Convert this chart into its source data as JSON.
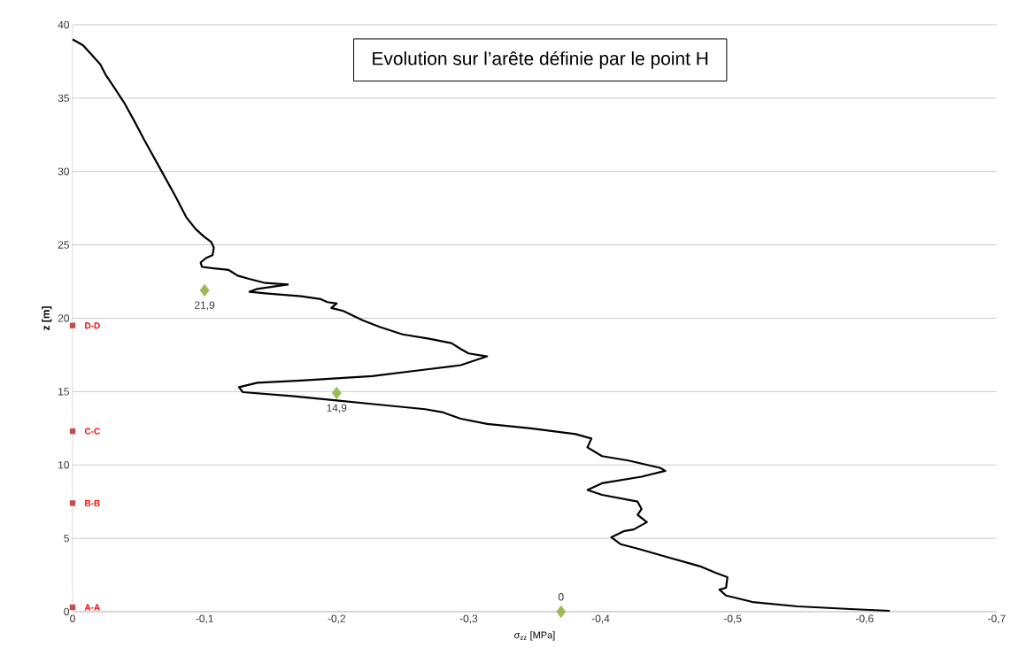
{
  "chart_data": {
    "type": "line",
    "title": "Evolution sur l’arête définie par le point H",
    "xlabel": "σ$_{zz}$ [MPa]",
    "ylabel": "z [m]",
    "xlim": [
      0,
      -0.7
    ],
    "ylim": [
      0,
      40
    ],
    "xticks": [
      0,
      {
        "value": -0.1,
        "label": "-0,1"
      },
      {
        "value": -0.2,
        "label": "-0,2"
      },
      {
        "value": -0.3,
        "label": "-0,3"
      },
      {
        "value": -0.4,
        "label": "-0,4"
      },
      {
        "value": -0.5,
        "label": "-0,5"
      },
      {
        "value": -0.6,
        "label": "-0,6"
      },
      {
        "value": -0.7,
        "label": "-0,7"
      }
    ],
    "yticks": [
      0,
      5,
      10,
      15,
      20,
      25,
      30,
      35,
      40
    ],
    "grid": "y",
    "legend": false,
    "series": [
      {
        "color": "#000000",
        "marker": "none",
        "line_style": "solid",
        "x": [
          0,
          -0.008,
          -0.015,
          -0.021,
          -0.025,
          -0.031,
          -0.039,
          -0.047,
          -0.054,
          -0.062,
          -0.07,
          -0.078,
          -0.086,
          -0.093,
          -0.099,
          -0.105,
          -0.107,
          -0.106,
          -0.101,
          -0.097,
          -0.098,
          -0.107,
          -0.118,
          -0.125,
          -0.133,
          -0.146,
          -0.163,
          -0.14,
          -0.134,
          -0.146,
          -0.173,
          -0.188,
          -0.193,
          -0.2,
          -0.196,
          -0.205,
          -0.22,
          -0.233,
          -0.25,
          -0.27,
          -0.287,
          -0.294,
          -0.3,
          -0.314,
          -0.294,
          -0.267,
          -0.227,
          -0.173,
          -0.14,
          -0.126,
          -0.129,
          -0.166,
          -0.2,
          -0.233,
          -0.267,
          -0.28,
          -0.294,
          -0.314,
          -0.347,
          -0.381,
          -0.393,
          -0.39,
          -0.401,
          -0.421,
          -0.445,
          -0.449,
          -0.431,
          -0.401,
          -0.39,
          -0.401,
          -0.428,
          -0.431,
          -0.428,
          -0.435,
          -0.425,
          -0.418,
          -0.408,
          -0.415,
          -0.428,
          -0.455,
          -0.475,
          -0.487,
          -0.496,
          -0.495,
          -0.49,
          -0.495,
          -0.515,
          -0.549,
          -0.589,
          -0.619
        ],
        "values": [
          39.0,
          38.6,
          37.9,
          37.3,
          36.6,
          35.8,
          34.7,
          33.4,
          32.2,
          30.9,
          29.6,
          28.3,
          26.9,
          26.1,
          25.6,
          25.2,
          24.8,
          24.3,
          24.1,
          23.8,
          23.5,
          23.4,
          23.3,
          22.9,
          22.7,
          22.4,
          22.3,
          22.0,
          21.8,
          21.7,
          21.5,
          21.3,
          21.1,
          21.0,
          20.7,
          20.5,
          19.85,
          19.4,
          18.9,
          18.6,
          18.3,
          17.9,
          17.6,
          17.4,
          16.8,
          16.5,
          16.05,
          15.75,
          15.6,
          15.3,
          14.96,
          14.7,
          14.4,
          14.1,
          13.8,
          13.6,
          13.15,
          12.8,
          12.5,
          12.1,
          11.8,
          11.2,
          10.6,
          10.3,
          9.8,
          9.6,
          9.2,
          8.75,
          8.3,
          7.96,
          7.5,
          7.0,
          6.6,
          6.1,
          5.6,
          5.5,
          5.07,
          4.6,
          4.3,
          3.6,
          3.1,
          2.65,
          2.35,
          1.63,
          1.5,
          1.1,
          0.66,
          0.36,
          0.18,
          0.06
        ]
      },
      {
        "type": "scatter",
        "color": "#9bbb59",
        "marker": "diamond",
        "x": [
          -0.1,
          -0.2,
          -0.37
        ],
        "values": [
          21.9,
          14.9,
          0
        ],
        "value_labels": [
          "21,9",
          "14,9",
          "0"
        ]
      },
      {
        "type": "scatter",
        "color": "#c0504d",
        "marker": "square",
        "x": [
          0,
          0,
          0,
          0
        ],
        "values": [
          19.5,
          12.3,
          7.4,
          0.3
        ],
        "value_labels": [
          "D-D",
          "C-C",
          "B-B",
          "A-A"
        ]
      }
    ]
  }
}
